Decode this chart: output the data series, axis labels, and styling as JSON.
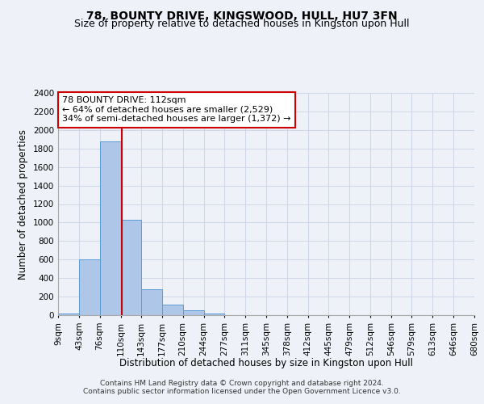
{
  "title": "78, BOUNTY DRIVE, KINGSWOOD, HULL, HU7 3FN",
  "subtitle": "Size of property relative to detached houses in Kingston upon Hull",
  "xlabel": "Distribution of detached houses by size in Kingston upon Hull",
  "ylabel": "Number of detached properties",
  "footer_line1": "Contains HM Land Registry data © Crown copyright and database right 2024.",
  "footer_line2": "Contains public sector information licensed under the Open Government Licence v3.0.",
  "annotation_title": "78 BOUNTY DRIVE: 112sqm",
  "annotation_line1": "← 64% of detached houses are smaller (2,529)",
  "annotation_line2": "34% of semi-detached houses are larger (1,372) →",
  "property_size": 112,
  "bar_edges": [
    9,
    43,
    76,
    110,
    143,
    177,
    210,
    244,
    277,
    311,
    345,
    378,
    412,
    445,
    479,
    512,
    546,
    579,
    613,
    646,
    680
  ],
  "bar_heights": [
    20,
    600,
    1880,
    1030,
    280,
    110,
    50,
    20,
    0,
    0,
    0,
    0,
    0,
    0,
    0,
    0,
    0,
    0,
    0,
    0
  ],
  "bar_color": "#aec6e8",
  "bar_edgecolor": "#5b9bd5",
  "vline_color": "#cc0000",
  "annotation_box_edgecolor": "#cc0000",
  "annotation_box_facecolor": "#ffffff",
  "grid_color": "#d0d8e8",
  "background_color": "#eef2f8",
  "ylim": [
    0,
    2400
  ],
  "yticks": [
    0,
    200,
    400,
    600,
    800,
    1000,
    1200,
    1400,
    1600,
    1800,
    2000,
    2200,
    2400
  ],
  "title_fontsize": 10,
  "subtitle_fontsize": 9,
  "axis_label_fontsize": 8.5,
  "tick_fontsize": 7.5
}
